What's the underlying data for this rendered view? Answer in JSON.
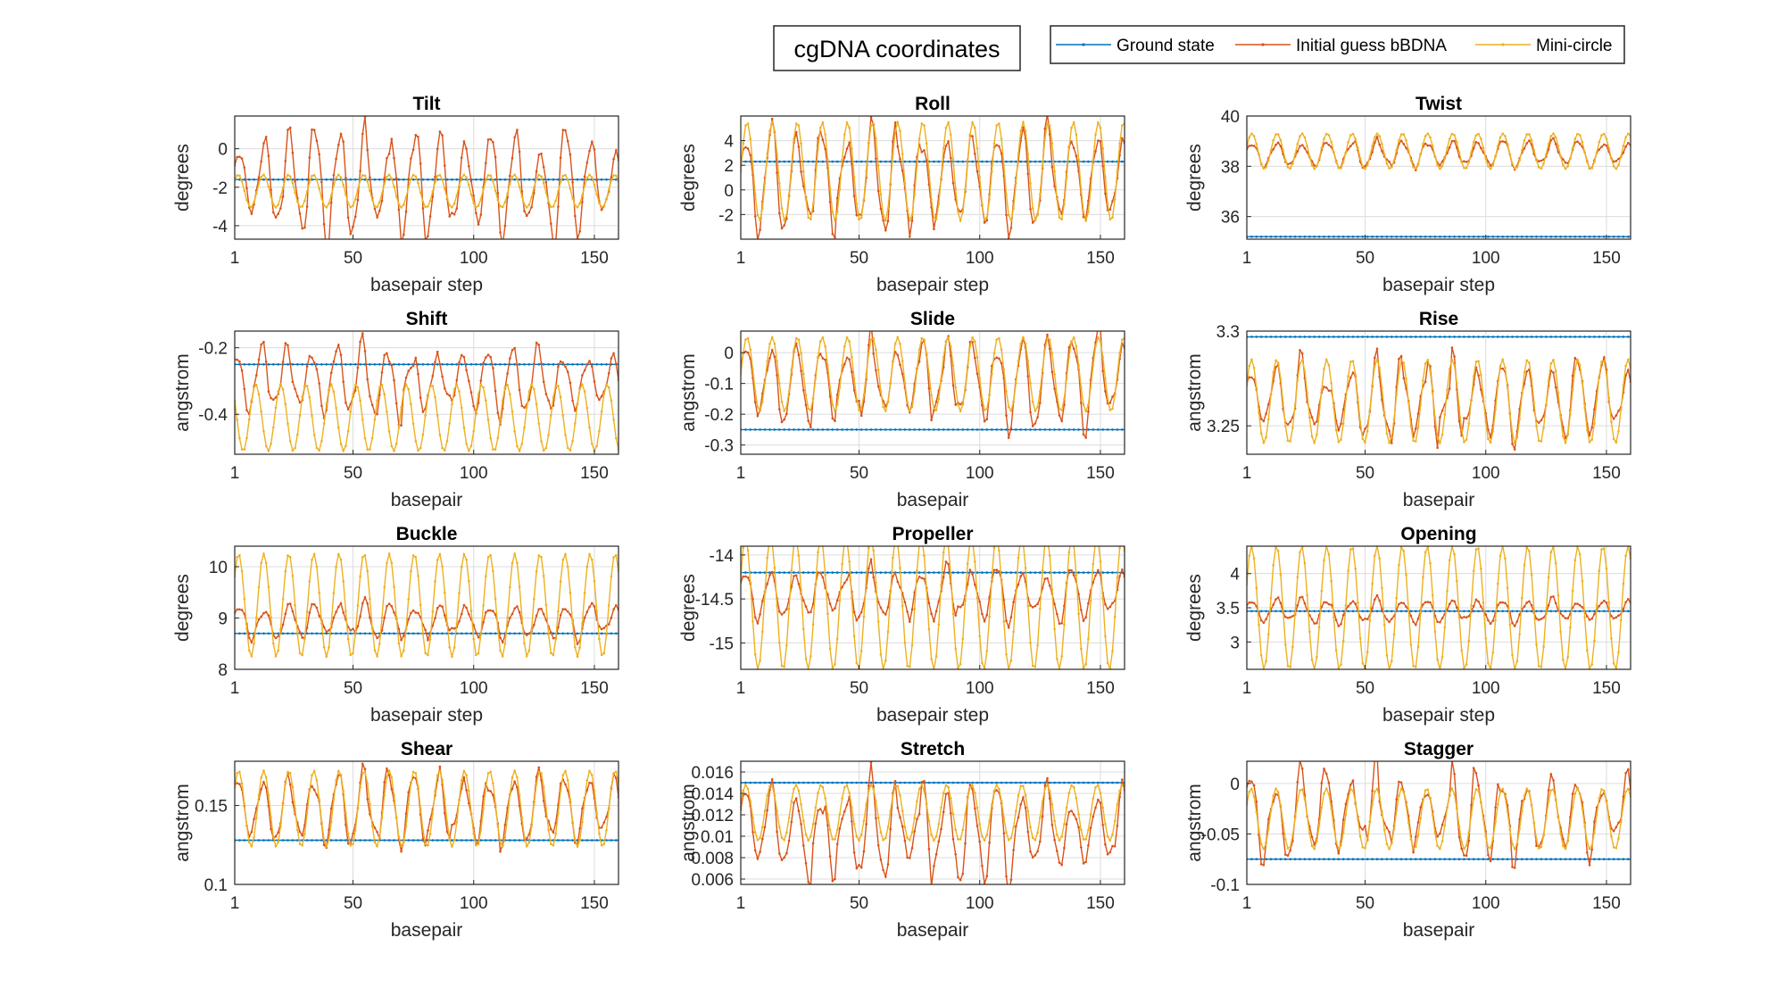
{
  "figure_title": "cgDNA coordinates",
  "legend": [
    {
      "label": "Ground state",
      "color": "#0072BD"
    },
    {
      "label": "Initial guess bBDNA",
      "color": "#D95319"
    },
    {
      "label": "Mini-circle",
      "color": "#EDB120"
    }
  ],
  "chart_data": [
    {
      "type": "line",
      "title": "Tilt",
      "xlabel": "basepair step",
      "ylabel": "degrees",
      "xlim": [
        1,
        160
      ],
      "ylim": [
        -4.7,
        1.7
      ],
      "xticks": [
        1,
        50,
        100,
        150
      ],
      "yticks": [
        -4,
        -2,
        0
      ],
      "ytick_labels": [
        "-4",
        "-2",
        "0"
      ],
      "grid": true,
      "series": [
        {
          "name": "Ground state",
          "color": "#0072BD",
          "constant": -1.6
        },
        {
          "name": "Initial guess bBDNA",
          "color": "#D95319",
          "center": -1.8,
          "amp_min": 1.2,
          "amp_max": 3.2,
          "period": 10.4,
          "phase": 0.4,
          "irregular": true
        },
        {
          "name": "Mini-circle",
          "color": "#EDB120",
          "center": -2.2,
          "amp": 0.85,
          "period": 10.4,
          "phase": 0.7
        }
      ]
    },
    {
      "type": "line",
      "title": "Roll",
      "xlabel": "basepair step",
      "ylabel": "degrees",
      "xlim": [
        1,
        160
      ],
      "ylim": [
        -4,
        6
      ],
      "xticks": [
        1,
        50,
        100,
        150
      ],
      "yticks": [
        -2,
        0,
        2,
        4
      ],
      "ytick_labels": [
        "-2",
        "0",
        "2",
        "4"
      ],
      "grid": true,
      "series": [
        {
          "name": "Ground state",
          "color": "#0072BD",
          "constant": 2.3
        },
        {
          "name": "Initial guess bBDNA",
          "color": "#D95319",
          "center": 0.9,
          "amp_min": 2.5,
          "amp_max": 4.6,
          "period": 10.4,
          "phase": 0.2,
          "irregular": true
        },
        {
          "name": "Mini-circle",
          "color": "#EDB120",
          "center": 1.5,
          "amp": 4.0,
          "period": 10.4,
          "phase": 0.0
        }
      ]
    },
    {
      "type": "line",
      "title": "Twist",
      "xlabel": "basepair step",
      "ylabel": "degrees",
      "xlim": [
        1,
        160
      ],
      "ylim": [
        35.1,
        40
      ],
      "xticks": [
        1,
        50,
        100,
        150
      ],
      "yticks": [
        36,
        38,
        40
      ],
      "ytick_labels": [
        "36",
        "38",
        "40"
      ],
      "grid": true,
      "series": [
        {
          "name": "Ground state",
          "color": "#0072BD",
          "constant": 35.2
        },
        {
          "name": "Initial guess bBDNA",
          "color": "#D95319",
          "center": 38.5,
          "amp_min": 0.3,
          "amp_max": 0.6,
          "period": 10.4,
          "phase": 0.3,
          "irregular": true
        },
        {
          "name": "Mini-circle",
          "color": "#EDB120",
          "center": 38.6,
          "amp": 0.7,
          "period": 10.4,
          "phase": 0.3
        }
      ]
    },
    {
      "type": "line",
      "title": "Shift",
      "xlabel": "basepair",
      "ylabel": "angstrom",
      "xlim": [
        1,
        160
      ],
      "ylim": [
        -0.52,
        -0.15
      ],
      "xticks": [
        1,
        50,
        100,
        150
      ],
      "yticks": [
        -0.4,
        -0.2
      ],
      "ytick_labels": [
        "-0.4",
        "-0.2"
      ],
      "grid": true,
      "series": [
        {
          "name": "Ground state",
          "color": "#0072BD",
          "constant": -0.25
        },
        {
          "name": "Initial guess bBDNA",
          "color": "#D95319",
          "center": -0.3,
          "amp_min": 0.05,
          "amp_max": 0.13,
          "period": 10.4,
          "phase": 1.1,
          "irregular": true
        },
        {
          "name": "Mini-circle",
          "color": "#EDB120",
          "center": -0.41,
          "amp": 0.1,
          "period": 10.4,
          "phase": 2.6
        }
      ]
    },
    {
      "type": "line",
      "title": "Slide",
      "xlabel": "basepair",
      "ylabel": "angstrom",
      "xlim": [
        1,
        160
      ],
      "ylim": [
        -0.33,
        0.07
      ],
      "xticks": [
        1,
        50,
        100,
        150
      ],
      "yticks": [
        -0.3,
        -0.2,
        -0.1,
        0
      ],
      "ytick_labels": [
        "-0.3",
        "-0.2",
        "-0.1",
        "0"
      ],
      "grid": true,
      "series": [
        {
          "name": "Ground state",
          "color": "#0072BD",
          "constant": -0.25
        },
        {
          "name": "Initial guess bBDNA",
          "color": "#D95319",
          "center": -0.09,
          "amp_min": 0.07,
          "amp_max": 0.18,
          "period": 10.4,
          "phase": 0.2,
          "irregular": true
        },
        {
          "name": "Mini-circle",
          "color": "#EDB120",
          "center": -0.07,
          "amp": 0.12,
          "period": 10.4,
          "phase": 0.0
        }
      ]
    },
    {
      "type": "line",
      "title": "Rise",
      "xlabel": "basepair",
      "ylabel": "angstrom",
      "xlim": [
        1,
        160
      ],
      "ylim": [
        3.235,
        3.3
      ],
      "xticks": [
        1,
        50,
        100,
        150
      ],
      "yticks": [
        3.25,
        3.3
      ],
      "ytick_labels": [
        "3.25",
        "3.3"
      ],
      "grid": true,
      "series": [
        {
          "name": "Ground state",
          "color": "#0072BD",
          "constant": 3.297
        },
        {
          "name": "Initial guess bBDNA",
          "color": "#D95319",
          "center": 3.263,
          "amp_min": 0.008,
          "amp_max": 0.025,
          "period": 10.4,
          "phase": 0.5,
          "irregular": true
        },
        {
          "name": "Mini-circle",
          "color": "#EDB120",
          "center": 3.263,
          "amp": 0.022,
          "period": 10.4,
          "phase": 0.4
        }
      ]
    },
    {
      "type": "line",
      "title": "Buckle",
      "xlabel": "basepair step",
      "ylabel": "degrees",
      "xlim": [
        1,
        160
      ],
      "ylim": [
        8,
        10.4
      ],
      "xticks": [
        1,
        50,
        100,
        150
      ],
      "yticks": [
        8,
        9,
        10
      ],
      "ytick_labels": [
        "8",
        "9",
        "10"
      ],
      "grid": true,
      "series": [
        {
          "name": "Ground state",
          "color": "#0072BD",
          "constant": 8.7
        },
        {
          "name": "Initial guess bBDNA",
          "color": "#D95319",
          "center": 8.95,
          "amp_min": 0.15,
          "amp_max": 0.4,
          "period": 10.4,
          "phase": 0.4,
          "irregular": true
        },
        {
          "name": "Mini-circle",
          "color": "#EDB120",
          "center": 9.25,
          "amp": 1.0,
          "period": 10.4,
          "phase": 0.6
        }
      ]
    },
    {
      "type": "line",
      "title": "Propeller",
      "xlabel": "basepair step",
      "ylabel": "degrees",
      "xlim": [
        1,
        160
      ],
      "ylim": [
        -15.3,
        -13.9
      ],
      "xticks": [
        1,
        50,
        100,
        150
      ],
      "yticks": [
        -15,
        -14.5,
        -14
      ],
      "ytick_labels": [
        "-15",
        "-14.5",
        "-14"
      ],
      "grid": true,
      "series": [
        {
          "name": "Ground state",
          "color": "#0072BD",
          "constant": -14.2
        },
        {
          "name": "Initial guess bBDNA",
          "color": "#D95319",
          "center": -14.45,
          "amp_min": 0.15,
          "amp_max": 0.35,
          "period": 10.4,
          "phase": 0.4,
          "irregular": true
        },
        {
          "name": "Mini-circle",
          "color": "#EDB120",
          "center": -14.55,
          "amp": 0.75,
          "period": 10.4,
          "phase": 0.4
        }
      ]
    },
    {
      "type": "line",
      "title": "Opening",
      "xlabel": "basepair step",
      "ylabel": "degrees",
      "xlim": [
        1,
        160
      ],
      "ylim": [
        2.6,
        4.4
      ],
      "xticks": [
        1,
        50,
        100,
        150
      ],
      "yticks": [
        3,
        3.5,
        4
      ],
      "ytick_labels": [
        "3",
        "3.5",
        "4"
      ],
      "grid": true,
      "series": [
        {
          "name": "Ground state",
          "color": "#0072BD",
          "constant": 3.45
        },
        {
          "name": "Initial guess bBDNA",
          "color": "#D95319",
          "center": 3.45,
          "amp_min": 0.1,
          "amp_max": 0.2,
          "period": 10.4,
          "phase": 0.4,
          "irregular": true
        },
        {
          "name": "Mini-circle",
          "color": "#EDB120",
          "center": 3.5,
          "amp": 0.9,
          "period": 10.4,
          "phase": 0.4
        }
      ]
    },
    {
      "type": "line",
      "title": "Shear",
      "xlabel": "basepair",
      "ylabel": "angstrom",
      "xlim": [
        1,
        160
      ],
      "ylim": [
        0.1,
        0.178
      ],
      "xticks": [
        1,
        50,
        100,
        150
      ],
      "yticks": [
        0.1,
        0.15
      ],
      "ytick_labels": [
        "0.1",
        "0.15"
      ],
      "grid": true,
      "series": [
        {
          "name": "Ground state",
          "color": "#0072BD",
          "constant": 0.128
        },
        {
          "name": "Initial guess bBDNA",
          "color": "#D95319",
          "center": 0.148,
          "amp_min": 0.012,
          "amp_max": 0.025,
          "period": 10.4,
          "phase": 0.8,
          "irregular": true
        },
        {
          "name": "Mini-circle",
          "color": "#EDB120",
          "center": 0.148,
          "amp": 0.024,
          "period": 10.4,
          "phase": 0.6
        }
      ]
    },
    {
      "type": "line",
      "title": "Stretch",
      "xlabel": "basepair",
      "ylabel": "angstrom",
      "xlim": [
        1,
        160
      ],
      "ylim": [
        0.0055,
        0.017
      ],
      "xticks": [
        1,
        50,
        100,
        150
      ],
      "yticks": [
        0.006,
        0.008,
        0.01,
        0.012,
        0.014,
        0.016
      ],
      "ytick_labels": [
        "0.006",
        "0.008",
        "0.01",
        "0.012",
        "0.014",
        "0.016"
      ],
      "grid": true,
      "series": [
        {
          "name": "Ground state",
          "color": "#0072BD",
          "constant": 0.015
        },
        {
          "name": "Initial guess bBDNA",
          "color": "#D95319",
          "center": 0.0105,
          "amp_min": 0.002,
          "amp_max": 0.0055,
          "period": 10.4,
          "phase": 0.3,
          "irregular": true
        },
        {
          "name": "Mini-circle",
          "color": "#EDB120",
          "center": 0.0122,
          "amp": 0.0026,
          "period": 10.4,
          "phase": 0.3
        }
      ]
    },
    {
      "type": "line",
      "title": "Stagger",
      "xlabel": "basepair",
      "ylabel": "angstrom",
      "xlim": [
        1,
        160
      ],
      "ylim": [
        -0.1,
        0.022
      ],
      "xticks": [
        1,
        50,
        100,
        150
      ],
      "yticks": [
        -0.1,
        -0.05,
        0
      ],
      "ytick_labels": [
        "-0.1",
        "-0.05",
        "0"
      ],
      "grid": true,
      "series": [
        {
          "name": "Ground state",
          "color": "#0072BD",
          "constant": -0.075
        },
        {
          "name": "Initial guess bBDNA",
          "color": "#D95319",
          "center": -0.03,
          "amp_min": 0.015,
          "amp_max": 0.052,
          "period": 10.4,
          "phase": 0.6,
          "irregular": true
        },
        {
          "name": "Mini-circle",
          "color": "#EDB120",
          "center": -0.035,
          "amp": 0.03,
          "period": 10.4,
          "phase": 0.5
        }
      ]
    }
  ]
}
